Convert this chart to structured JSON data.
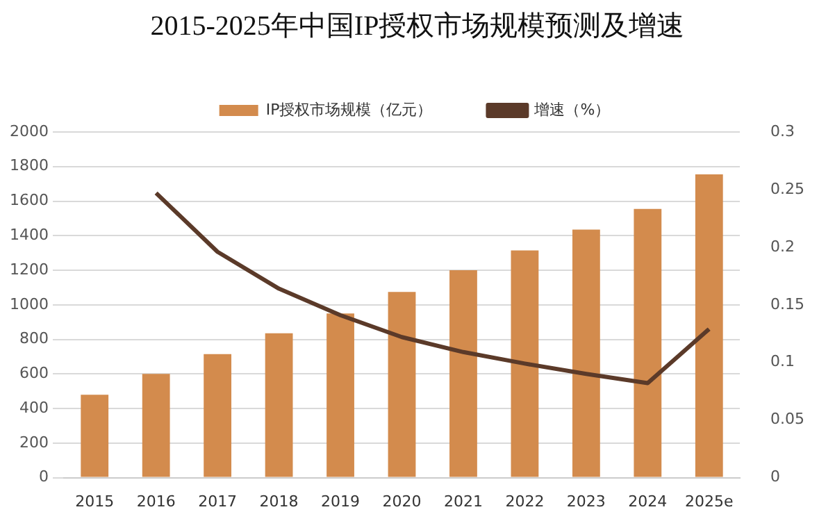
{
  "chart_data": {
    "type": "bar",
    "title": "2015-2025年中国IP授权市场规模预测及增速",
    "categories": [
      "2015",
      "2016",
      "2017",
      "2018",
      "2019",
      "2020",
      "2021",
      "2022",
      "2023",
      "2024",
      "2025e"
    ],
    "series": [
      {
        "name": "IP授权市场规模（亿元）",
        "color": "#d38b4d",
        "values": [
          480,
          600,
          715,
          835,
          950,
          1075,
          1200,
          1315,
          1435,
          1555,
          1755
        ]
      },
      {
        "name": "增速（%）",
        "type": "line",
        "axis": "y2",
        "color": "#5b3a29",
        "values": [
          null,
          0.247,
          0.196,
          0.164,
          0.141,
          0.122,
          0.109,
          0.099,
          0.09,
          0.082,
          0.129
        ]
      }
    ],
    "ylim": [
      0,
      2000
    ],
    "yticks": [
      0,
      200,
      400,
      600,
      800,
      1000,
      1200,
      1400,
      1600,
      1800,
      2000
    ],
    "y2lim": [
      0,
      0.3
    ],
    "y2ticks": [
      0,
      0.05,
      0.1,
      0.15,
      0.2,
      0.25,
      0.3
    ],
    "grid": "y",
    "legend": "top",
    "marker": "none"
  }
}
